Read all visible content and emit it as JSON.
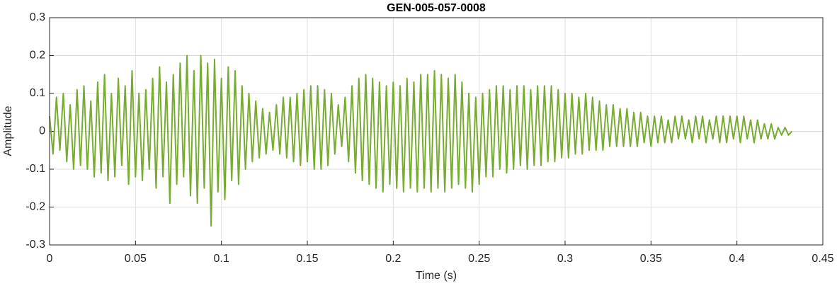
{
  "chart_data": {
    "type": "line",
    "title": "GEN-005-057-0008",
    "x_label": "Time (s)",
    "y_label": "Amplitude",
    "color": "#77ac30",
    "grid": true,
    "xlim": [
      0,
      0.45
    ],
    "xticks": [
      0,
      0.05,
      0.1,
      0.15,
      0.2,
      0.25,
      0.3,
      0.35,
      0.4,
      0.45
    ],
    "ylim": [
      -0.3,
      0.3
    ],
    "yticks": [
      -0.3,
      -0.2,
      -0.1,
      0,
      0.1,
      0.2,
      0.3
    ],
    "x": [
      0,
      0.002,
      0.004,
      0.006,
      0.008,
      0.01,
      0.012,
      0.014,
      0.016,
      0.018,
      0.02,
      0.022,
      0.024,
      0.026,
      0.028,
      0.03,
      0.032,
      0.034,
      0.036,
      0.038,
      0.04,
      0.042,
      0.044,
      0.046,
      0.048,
      0.05,
      0.052,
      0.054,
      0.056,
      0.058,
      0.06,
      0.062,
      0.064,
      0.066,
      0.068,
      0.07,
      0.072,
      0.074,
      0.076,
      0.078,
      0.08,
      0.082,
      0.084,
      0.086,
      0.088,
      0.09,
      0.092,
      0.094,
      0.096,
      0.098,
      0.1,
      0.102,
      0.104,
      0.106,
      0.108,
      0.11,
      0.112,
      0.114,
      0.116,
      0.118,
      0.12,
      0.122,
      0.124,
      0.126,
      0.128,
      0.13,
      0.132,
      0.134,
      0.136,
      0.138,
      0.14,
      0.142,
      0.144,
      0.146,
      0.148,
      0.15,
      0.152,
      0.154,
      0.156,
      0.158,
      0.16,
      0.162,
      0.164,
      0.166,
      0.168,
      0.17,
      0.172,
      0.174,
      0.176,
      0.178,
      0.18,
      0.182,
      0.184,
      0.186,
      0.188,
      0.19,
      0.192,
      0.194,
      0.196,
      0.198,
      0.2,
      0.202,
      0.204,
      0.206,
      0.208,
      0.21,
      0.212,
      0.214,
      0.216,
      0.218,
      0.22,
      0.222,
      0.224,
      0.226,
      0.228,
      0.23,
      0.232,
      0.234,
      0.236,
      0.238,
      0.24,
      0.242,
      0.244,
      0.246,
      0.248,
      0.25,
      0.252,
      0.254,
      0.256,
      0.258,
      0.26,
      0.262,
      0.264,
      0.266,
      0.268,
      0.27,
      0.272,
      0.274,
      0.276,
      0.278,
      0.28,
      0.282,
      0.284,
      0.286,
      0.288,
      0.29,
      0.292,
      0.294,
      0.296,
      0.298,
      0.3,
      0.302,
      0.304,
      0.306,
      0.308,
      0.31,
      0.312,
      0.314,
      0.316,
      0.318,
      0.32,
      0.322,
      0.324,
      0.326,
      0.328,
      0.33,
      0.332,
      0.334,
      0.336,
      0.338,
      0.34,
      0.342,
      0.344,
      0.346,
      0.348,
      0.35,
      0.352,
      0.354,
      0.356,
      0.358,
      0.36,
      0.362,
      0.364,
      0.366,
      0.368,
      0.37,
      0.372,
      0.374,
      0.376,
      0.378,
      0.38,
      0.382,
      0.384,
      0.386,
      0.388,
      0.39,
      0.392,
      0.394,
      0.396,
      0.398,
      0.4,
      0.402,
      0.404,
      0.406,
      0.408,
      0.41,
      0.412,
      0.414,
      0.416,
      0.418,
      0.42,
      0.422,
      0.424,
      0.426,
      0.428,
      0.43,
      0.432
    ],
    "values": [
      0.04,
      -0.06,
      0.09,
      -0.05,
      0.1,
      -0.08,
      0.07,
      -0.1,
      0.11,
      -0.09,
      0.12,
      -0.1,
      0.08,
      -0.12,
      0.13,
      -0.11,
      0.15,
      -0.13,
      0.1,
      -0.12,
      0.14,
      -0.09,
      0.12,
      -0.14,
      0.16,
      -0.12,
      0.1,
      -0.13,
      0.11,
      -0.1,
      0.14,
      -0.15,
      0.17,
      -0.12,
      0.13,
      -0.19,
      0.15,
      -0.14,
      0.18,
      -0.12,
      0.2,
      -0.17,
      0.16,
      -0.19,
      0.2,
      -0.15,
      0.18,
      -0.25,
      0.19,
      -0.16,
      0.14,
      -0.18,
      0.17,
      -0.13,
      0.16,
      -0.14,
      0.12,
      -0.1,
      0.1,
      -0.08,
      0.08,
      -0.07,
      0.06,
      -0.06,
      0.05,
      -0.05,
      0.07,
      -0.06,
      0.09,
      -0.07,
      0.09,
      -0.08,
      0.1,
      -0.09,
      0.11,
      -0.08,
      0.12,
      -0.1,
      0.12,
      -0.1,
      0.11,
      -0.09,
      0.1,
      -0.06,
      0.07,
      -0.04,
      0.09,
      -0.08,
      0.12,
      -0.11,
      0.14,
      -0.13,
      0.15,
      -0.14,
      0.14,
      -0.15,
      0.13,
      -0.16,
      0.12,
      -0.14,
      0.13,
      -0.15,
      0.12,
      -0.16,
      0.14,
      -0.15,
      0.13,
      -0.16,
      0.15,
      -0.15,
      0.15,
      -0.16,
      0.16,
      -0.15,
      0.15,
      -0.16,
      0.14,
      -0.15,
      0.15,
      -0.14,
      0.13,
      -0.15,
      0.1,
      -0.16,
      0.09,
      -0.14,
      0.1,
      -0.12,
      0.11,
      -0.12,
      0.12,
      -0.1,
      0.12,
      -0.11,
      0.11,
      -0.1,
      0.12,
      -0.09,
      0.12,
      -0.1,
      0.11,
      -0.09,
      0.12,
      -0.09,
      0.12,
      -0.08,
      0.12,
      -0.08,
      0.11,
      -0.07,
      0.1,
      -0.07,
      0.1,
      -0.06,
      0.09,
      -0.06,
      0.1,
      -0.05,
      0.09,
      -0.05,
      0.08,
      -0.05,
      0.07,
      -0.04,
      0.07,
      -0.04,
      0.06,
      -0.04,
      0.06,
      -0.04,
      0.05,
      -0.04,
      0.05,
      -0.03,
      0.04,
      -0.04,
      0.04,
      -0.03,
      0.04,
      -0.03,
      0.03,
      -0.03,
      0.04,
      -0.02,
      0.04,
      -0.02,
      0.03,
      -0.03,
      0.04,
      -0.02,
      0.04,
      -0.03,
      0.03,
      -0.02,
      0.04,
      -0.03,
      0.04,
      -0.03,
      0.04,
      -0.02,
      0.04,
      -0.03,
      0.04,
      -0.02,
      0.03,
      -0.03,
      0.03,
      -0.02,
      0.02,
      -0.02,
      0.02,
      -0.02,
      0.01,
      -0.01,
      0.01,
      -0.01,
      0
    ]
  }
}
